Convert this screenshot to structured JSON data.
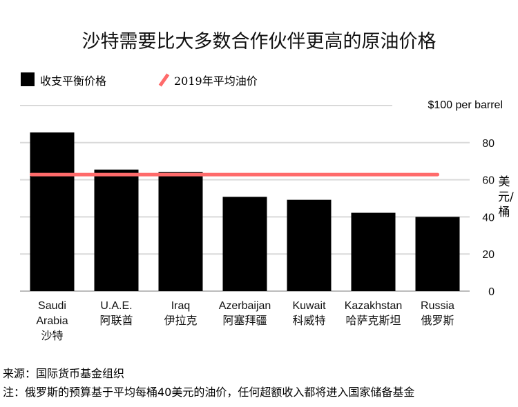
{
  "title": "沙特需要比大多数合作伙伴更高的原油价格",
  "legend": {
    "bar_label": "收支平衡价格",
    "line_label": "2019年平均油价"
  },
  "unit_label": "$100 per barrel",
  "yaxis_title": "美元/桶",
  "source": "来源：国际货币基金组织",
  "note": "注：俄罗斯的预算基于平均每桶40美元的油价，任何超额收入都将进入国家储备基金",
  "colors": {
    "bar": "#000000",
    "line": "#ff6b6b",
    "grid": "#d9d9d9"
  },
  "chart_data": {
    "type": "bar",
    "categories": [
      [
        "Saudi",
        "Arabia",
        "沙特"
      ],
      [
        "U.A.E.",
        "阿联酋"
      ],
      [
        "Iraq",
        "伊拉克"
      ],
      [
        "Azerbaijan",
        "阿塞拜疆"
      ],
      [
        "Kuwait",
        "科威特"
      ],
      [
        "Kazakhstan",
        "哈萨克斯坦"
      ],
      [
        "Russia",
        "俄罗斯"
      ]
    ],
    "series": [
      {
        "name": "收支平衡价格",
        "values": [
          85.5,
          65.5,
          64.2,
          50.8,
          49.2,
          42.2,
          40.0
        ]
      }
    ],
    "reference_line": {
      "name": "2019年平均油价",
      "value": 62.8
    },
    "yticks": [
      0,
      20,
      40,
      60,
      80
    ],
    "ylim": [
      0,
      100
    ],
    "grid": true
  }
}
